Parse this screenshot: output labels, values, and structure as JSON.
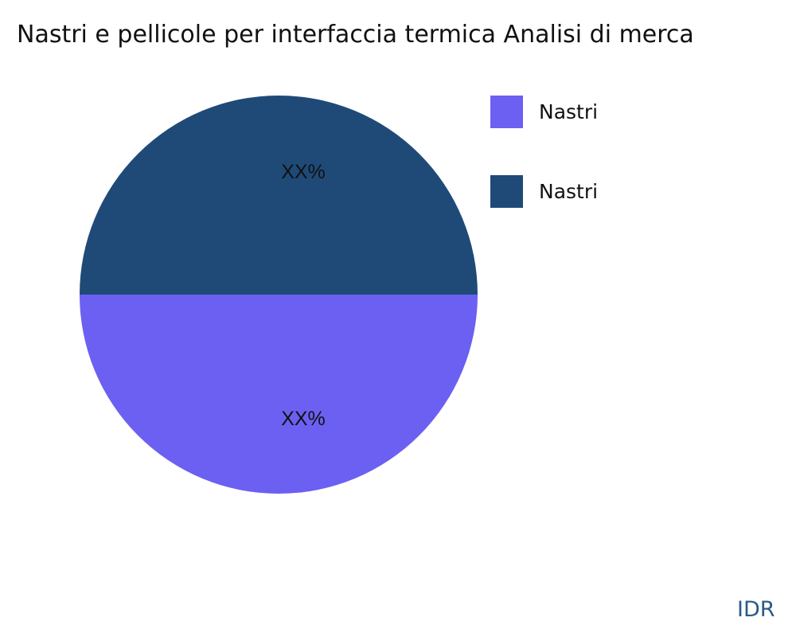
{
  "chart_data": {
    "type": "pie",
    "title": "Nastri e pellicole per interfaccia termica Analisi di merca",
    "slices": [
      {
        "name": "Nastri",
        "value": 50,
        "label": "XX%",
        "color": "#6c60f2"
      },
      {
        "name": "Nastri",
        "value": 50,
        "label": "XX%",
        "color": "#1f4a78"
      }
    ],
    "legend_position": "right"
  },
  "brand": "IDR"
}
